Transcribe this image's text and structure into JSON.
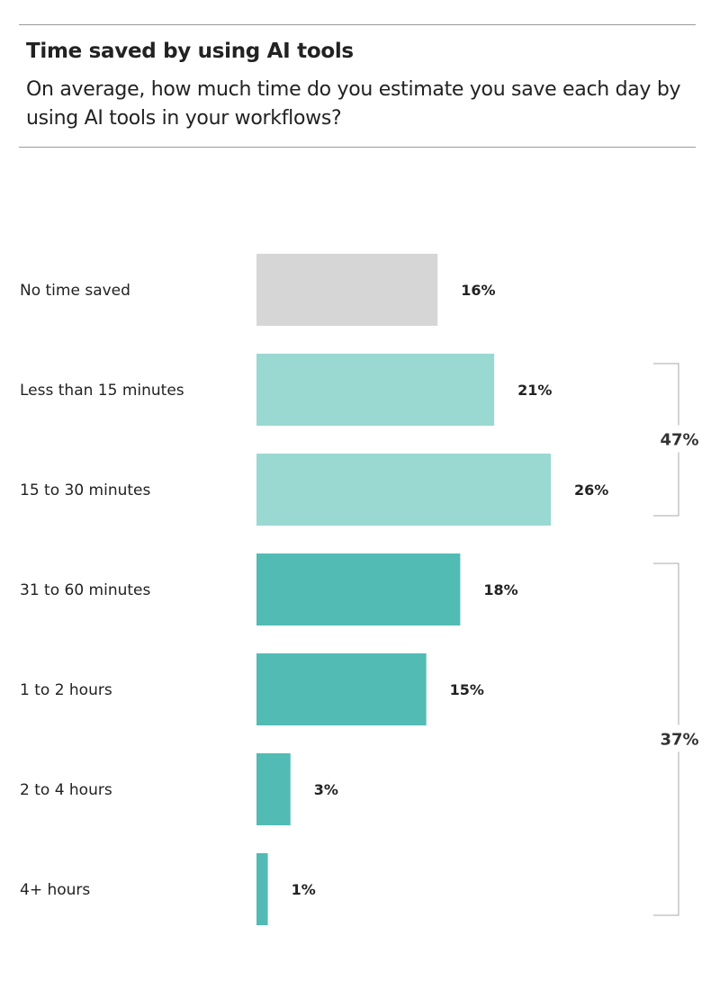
{
  "header": {
    "title": "Time saved by using AI tools",
    "subtitle": "On average, how much time do you estimate you save each day by using AI tools in your workflows?"
  },
  "chart_data": {
    "type": "bar",
    "orientation": "horizontal",
    "categories": [
      "No time saved",
      "Less than 15 minutes",
      "15 to 30 minutes",
      "31 to 60 minutes",
      "1 to 2 hours",
      "2 to 4 hours",
      "4+ hours"
    ],
    "values": [
      16,
      21,
      26,
      18,
      15,
      3,
      1
    ],
    "value_labels": [
      "16%",
      "21%",
      "26%",
      "18%",
      "15%",
      "3%",
      "1%"
    ],
    "bar_colors": [
      "#d6d6d6",
      "#9ad8d2",
      "#9ad8d2",
      "#52bbb4",
      "#52bbb4",
      "#52bbb4",
      "#52bbb4"
    ],
    "groups": [
      {
        "label": "47%",
        "from": 1,
        "to": 2
      },
      {
        "label": "37%",
        "from": 3,
        "to": 6
      }
    ],
    "xlim": [
      0,
      26
    ],
    "grid": false,
    "xlabel": "",
    "ylabel": ""
  }
}
